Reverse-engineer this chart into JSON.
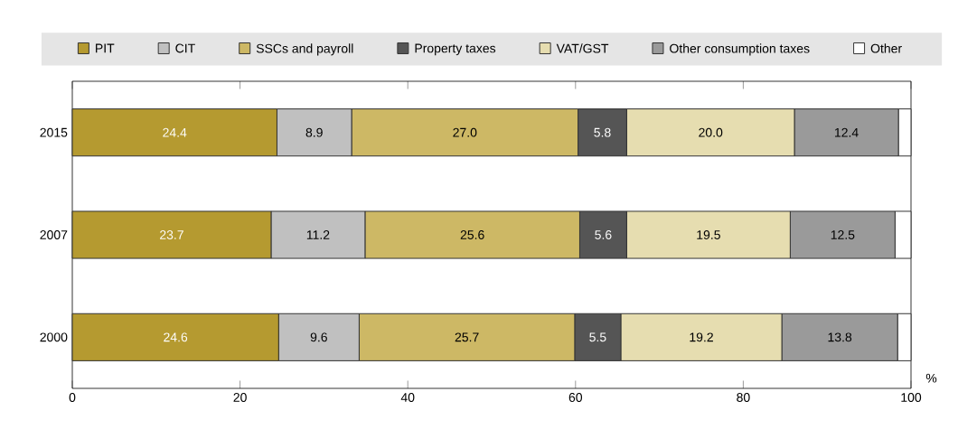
{
  "chart_data": {
    "type": "bar",
    "orientation": "horizontal",
    "stacked": true,
    "xlabel": "%",
    "categories": [
      "2015",
      "2007",
      "2000"
    ],
    "series": [
      {
        "name": "PIT",
        "color": "#b59a30",
        "values": [
          24.4,
          23.7,
          24.6
        ],
        "value_labels": [
          "24.4",
          "23.7",
          "24.6"
        ]
      },
      {
        "name": "CIT",
        "color": "#c0c0c0",
        "values": [
          8.9,
          11.2,
          9.6
        ],
        "value_labels": [
          "8.9",
          "11.2",
          "9.6"
        ]
      },
      {
        "name": "SSCs and payroll",
        "color": "#cdb865",
        "values": [
          27.0,
          25.6,
          25.7
        ],
        "value_labels": [
          "27.0",
          "25.6",
          "25.7"
        ]
      },
      {
        "name": "Property taxes",
        "color": "#555555",
        "values": [
          5.8,
          5.6,
          5.5
        ],
        "value_labels": [
          "5.8",
          "5.6",
          "5.5"
        ]
      },
      {
        "name": "VAT/GST",
        "color": "#e6ddb0",
        "values": [
          20.0,
          19.5,
          19.2
        ],
        "value_labels": [
          "20.0",
          "19.5",
          "19.2"
        ]
      },
      {
        "name": "Other consumption taxes",
        "color": "#9a9a9a",
        "values": [
          12.4,
          12.5,
          13.8
        ],
        "value_labels": [
          "12.4",
          "12.5",
          "13.8"
        ]
      },
      {
        "name": "Other",
        "color": "#ffffff",
        "values": [
          1.5,
          1.9,
          1.6
        ],
        "value_labels": [
          null,
          null,
          null
        ]
      }
    ],
    "xlim": [
      0,
      100
    ],
    "xticks": [
      0,
      20,
      40,
      60,
      80,
      100
    ],
    "legend": "top",
    "grid": false
  }
}
